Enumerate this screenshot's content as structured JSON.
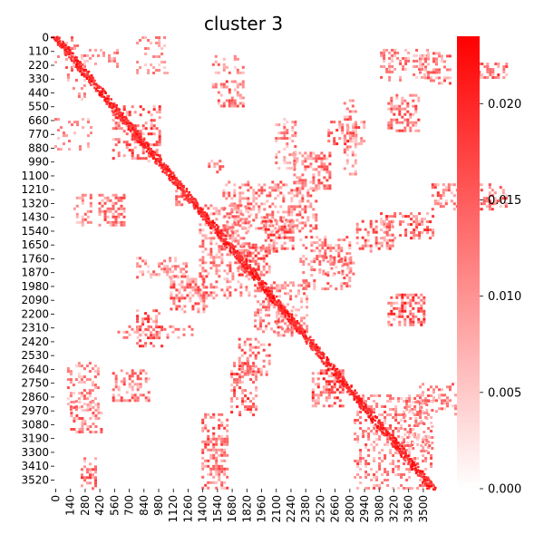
{
  "chart_data": {
    "type": "heatmap",
    "title": "cluster 3",
    "xlabel": "",
    "ylabel": "",
    "n": 3600,
    "x_tick_labels": [
      "0",
      "140",
      "280",
      "420",
      "560",
      "700",
      "840",
      "980",
      "1120",
      "1260",
      "1400",
      "1540",
      "1680",
      "1820",
      "1960",
      "2100",
      "2240",
      "2380",
      "2520",
      "2660",
      "2800",
      "2940",
      "3080",
      "3220",
      "3360",
      "3500"
    ],
    "y_tick_labels": [
      "0",
      "110",
      "220",
      "330",
      "440",
      "550",
      "660",
      "770",
      "880",
      "990",
      "1100",
      "1210",
      "1320",
      "1430",
      "1540",
      "1650",
      "1760",
      "1870",
      "1980",
      "2090",
      "2200",
      "2310",
      "2420",
      "2530",
      "2640",
      "2750",
      "2860",
      "2970",
      "3080",
      "3190",
      "3300",
      "3410",
      "3520"
    ],
    "colorbar": {
      "min": 0.0,
      "max": 0.0235,
      "tick_labels": [
        "0.000",
        "0.005",
        "0.010",
        "0.015",
        "0.020"
      ],
      "color_low": "#ffffff",
      "color_high": "#ff0000"
    },
    "diagonal_band": true,
    "blocks": [
      {
        "x": [
          0,
          300
        ],
        "y": [
          0,
          300
        ],
        "v": 0.011,
        "d": 0.2
      },
      {
        "x": [
          550,
          1000
        ],
        "y": [
          550,
          1000
        ],
        "v": 0.013,
        "d": 0.4
      },
      {
        "x": [
          250,
          600
        ],
        "y": [
          100,
          250
        ],
        "v": 0.01,
        "d": 0.2
      },
      {
        "x": [
          1500,
          1800
        ],
        "y": [
          150,
          300
        ],
        "v": 0.01,
        "d": 0.3
      },
      {
        "x": [
          3100,
          3550
        ],
        "y": [
          100,
          350
        ],
        "v": 0.01,
        "d": 0.3
      },
      {
        "x": [
          1500,
          1800
        ],
        "y": [
          350,
          550
        ],
        "v": 0.012,
        "d": 0.45
      },
      {
        "x": [
          2600,
          2950
        ],
        "y": [
          650,
          850
        ],
        "v": 0.013,
        "d": 0.4
      },
      {
        "x": [
          0,
          350
        ],
        "y": [
          650,
          900
        ],
        "v": 0.009,
        "d": 0.2
      },
      {
        "x": [
          1600,
          2500
        ],
        "y": [
          1150,
          1550
        ],
        "v": 0.011,
        "d": 0.35
      },
      {
        "x": [
          3100,
          3600
        ],
        "y": [
          1400,
          1600
        ],
        "v": 0.013,
        "d": 0.4
      },
      {
        "x": [
          1750,
          2050
        ],
        "y": [
          1650,
          1900
        ],
        "v": 0.013,
        "d": 0.5
      },
      {
        "x": [
          2550,
          2850
        ],
        "y": [
          1750,
          1900
        ],
        "v": 0.012,
        "d": 0.4
      },
      {
        "x": [
          1100,
          1450
        ],
        "y": [
          1900,
          2200
        ],
        "v": 0.012,
        "d": 0.45
      },
      {
        "x": [
          1900,
          2400
        ],
        "y": [
          1950,
          2350
        ],
        "v": 0.011,
        "d": 0.35
      },
      {
        "x": [
          600,
          1300
        ],
        "y": [
          2300,
          2400
        ],
        "v": 0.01,
        "d": 0.3
      },
      {
        "x": [
          1750,
          2050
        ],
        "y": [
          2400,
          2700
        ],
        "v": 0.012,
        "d": 0.4
      },
      {
        "x": [
          2450,
          2750
        ],
        "y": [
          2650,
          2950
        ],
        "v": 0.014,
        "d": 0.5
      },
      {
        "x": [
          550,
          900
        ],
        "y": [
          2650,
          2900
        ],
        "v": 0.012,
        "d": 0.45
      },
      {
        "x": [
          150,
          450
        ],
        "y": [
          2900,
          3150
        ],
        "v": 0.011,
        "d": 0.4
      },
      {
        "x": [
          1400,
          1650
        ],
        "y": [
          3000,
          3600
        ],
        "v": 0.012,
        "d": 0.4
      },
      {
        "x": [
          2850,
          3600
        ],
        "y": [
          2850,
          3600
        ],
        "v": 0.011,
        "d": 0.3
      },
      {
        "x": [
          250,
          400
        ],
        "y": [
          3350,
          3600
        ],
        "v": 0.012,
        "d": 0.45
      },
      {
        "x": [
          2100,
          2300
        ],
        "y": [
          650,
          1050
        ],
        "v": 0.01,
        "d": 0.35
      },
      {
        "x": [
          1150,
          1300
        ],
        "y": [
          1200,
          1350
        ],
        "v": 0.011,
        "d": 0.3
      },
      {
        "x": [
          3300,
          3600
        ],
        "y": [
          2900,
          3300
        ],
        "v": 0.01,
        "d": 0.3
      }
    ]
  }
}
